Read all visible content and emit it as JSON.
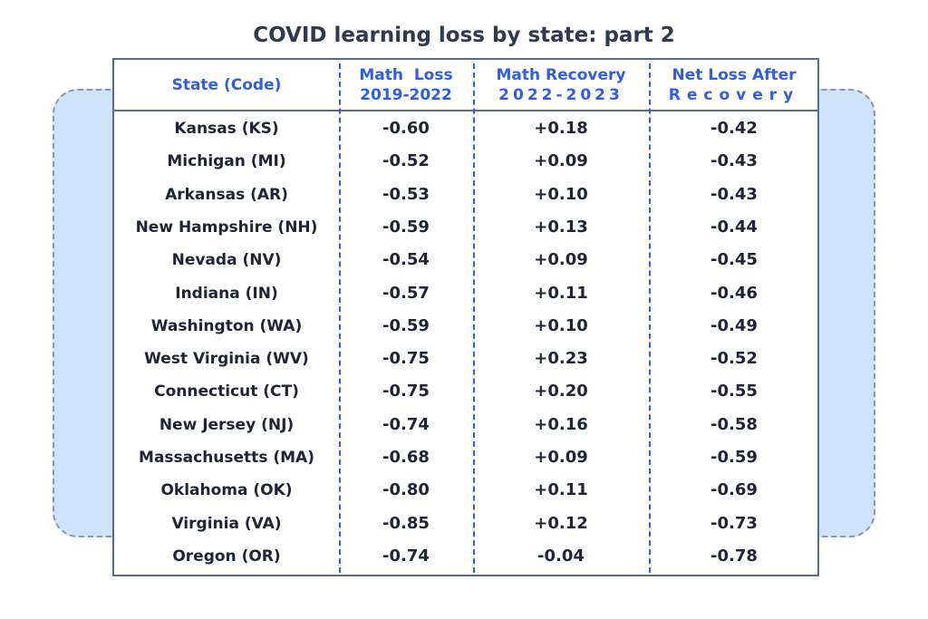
{
  "chart_data": {
    "type": "table",
    "title": "COVID learning loss by state: part 2",
    "columns": [
      {
        "line1": "State (Code)",
        "line2": ""
      },
      {
        "line1": "Math  Loss",
        "line2": "2019-2022"
      },
      {
        "line1": "Math Recovery",
        "line2": "2022-2023"
      },
      {
        "line1": "Net Loss After",
        "line2": "Recovery"
      }
    ],
    "rows": [
      {
        "state": "Kansas (KS)",
        "loss": "-0.60",
        "recovery": "+0.18",
        "net": "-0.42"
      },
      {
        "state": "Michigan (MI)",
        "loss": "-0.52",
        "recovery": "+0.09",
        "net": "-0.43"
      },
      {
        "state": "Arkansas (AR)",
        "loss": "-0.53",
        "recovery": "+0.10",
        "net": "-0.43"
      },
      {
        "state": "New Hampshire (NH)",
        "loss": "-0.59",
        "recovery": "+0.13",
        "net": "-0.44"
      },
      {
        "state": "Nevada (NV)",
        "loss": "-0.54",
        "recovery": "+0.09",
        "net": "-0.45"
      },
      {
        "state": "Indiana (IN)",
        "loss": "-0.57",
        "recovery": "+0.11",
        "net": "-0.46"
      },
      {
        "state": "Washington (WA)",
        "loss": "-0.59",
        "recovery": "+0.10",
        "net": "-0.49"
      },
      {
        "state": "West Virginia (WV)",
        "loss": "-0.75",
        "recovery": "+0.23",
        "net": "-0.52"
      },
      {
        "state": "Connecticut (CT)",
        "loss": "-0.75",
        "recovery": "+0.20",
        "net": "-0.55"
      },
      {
        "state": "New Jersey (NJ)",
        "loss": "-0.74",
        "recovery": "+0.16",
        "net": "-0.58"
      },
      {
        "state": "Massachusetts (MA)",
        "loss": "-0.68",
        "recovery": "+0.09",
        "net": "-0.59"
      },
      {
        "state": "Oklahoma (OK)",
        "loss": "-0.80",
        "recovery": "+0.11",
        "net": "-0.69"
      },
      {
        "state": "Virginia (VA)",
        "loss": "-0.85",
        "recovery": "+0.12",
        "net": "-0.73"
      },
      {
        "state": "Oregon (OR)",
        "loss": "-0.74",
        "recovery": "-0.04",
        "net": "-0.78"
      }
    ]
  },
  "colors": {
    "header_text": "#2f5fe0",
    "body_text": "#1f2436",
    "title_text": "#2f3a4f",
    "border": "#5b6b85",
    "card_fill": "#cfe3fd",
    "divider": "#2f5fe0"
  }
}
